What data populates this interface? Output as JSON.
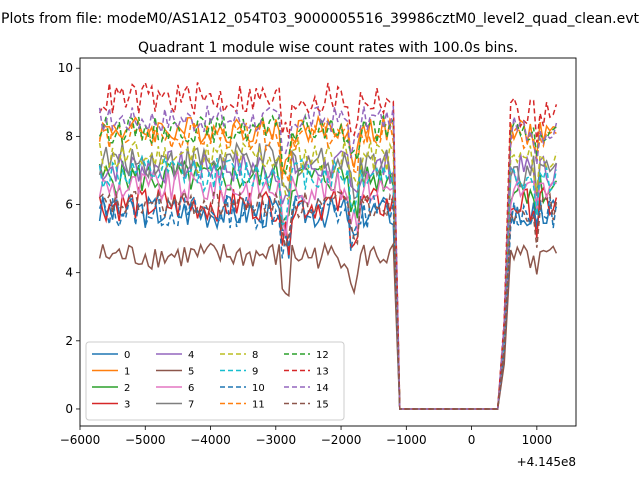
{
  "figure": {
    "suptitle": "Plots from file: modeM0/AS1A12_054T03_9000005516_39986cztM0_level2_quad_clean.evt"
  },
  "chart_data": {
    "type": "line",
    "title": "Quadrant 1 module wise count rates with 100.0s bins.",
    "xlabel": "",
    "ylabel": "",
    "x_offset_label": "+4.145e8",
    "xlim": [
      -6000,
      1600
    ],
    "ylim": [
      -0.5,
      10.3
    ],
    "xticks": [
      -6000,
      -5000,
      -4000,
      -3000,
      -2000,
      -1000,
      0,
      1000
    ],
    "yticks": [
      0,
      2,
      4,
      6,
      8,
      10
    ],
    "xtick_labels": [
      "−6000",
      "−5000",
      "−4000",
      "−3000",
      "−2000",
      "−1000",
      "0",
      "1000"
    ],
    "ytick_labels": [
      "0",
      "2",
      "4",
      "6",
      "8",
      "10"
    ],
    "grid": false,
    "legend_position": "lower-left",
    "legend_columns": 4,
    "segments_description": "data from about -5700 to -1200, drop to 0 until about 400, then data from about 500 to 1300",
    "series": [
      {
        "name": "0",
        "style": "solid",
        "color": "#1f77b4",
        "level_a": 5.8,
        "level_b": 5.7,
        "spread": 0.5
      },
      {
        "name": "1",
        "style": "solid",
        "color": "#ff7f0e",
        "level_a": 8.2,
        "level_b": 8.1,
        "spread": 0.4
      },
      {
        "name": "2",
        "style": "solid",
        "color": "#2ca02c",
        "level_a": 6.8,
        "level_b": 6.5,
        "spread": 0.5
      },
      {
        "name": "3",
        "style": "solid",
        "color": "#d62728",
        "level_a": 6.0,
        "level_b": 6.0,
        "spread": 0.5
      },
      {
        "name": "4",
        "style": "solid",
        "color": "#9467bd",
        "level_a": 7.1,
        "level_b": 7.0,
        "spread": 0.5
      },
      {
        "name": "5",
        "style": "solid",
        "color": "#8c564b",
        "level_a": 4.5,
        "level_b": 4.4,
        "spread": 0.4
      },
      {
        "name": "6",
        "style": "solid",
        "color": "#e377c2",
        "level_a": 6.5,
        "level_b": 6.4,
        "spread": 0.5
      },
      {
        "name": "7",
        "style": "solid",
        "color": "#7f7f7f",
        "level_a": 7.3,
        "level_b": 7.0,
        "spread": 0.5
      },
      {
        "name": "8",
        "style": "dashed",
        "color": "#bcbd22",
        "level_a": 7.4,
        "level_b": 7.3,
        "spread": 0.5
      },
      {
        "name": "9",
        "style": "dashed",
        "color": "#17becf",
        "level_a": 6.9,
        "level_b": 6.8,
        "spread": 0.5
      },
      {
        "name": "10",
        "style": "dashed",
        "color": "#1f77b4",
        "level_a": 5.8,
        "level_b": 5.8,
        "spread": 0.5
      },
      {
        "name": "11",
        "style": "dashed",
        "color": "#ff7f0e",
        "level_a": 8.0,
        "level_b": 7.9,
        "spread": 0.4
      },
      {
        "name": "12",
        "style": "dashed",
        "color": "#2ca02c",
        "level_a": 8.2,
        "level_b": 8.1,
        "spread": 0.4
      },
      {
        "name": "13",
        "style": "dashed",
        "color": "#d62728",
        "level_a": 9.1,
        "level_b": 8.7,
        "spread": 0.5
      },
      {
        "name": "14",
        "style": "dashed",
        "color": "#9467bd",
        "level_a": 8.5,
        "level_b": 8.2,
        "spread": 0.4
      },
      {
        "name": "15",
        "style": "dashed",
        "color": "#8c564b",
        "level_a": 6.0,
        "level_b": 5.9,
        "spread": 0.4
      }
    ]
  }
}
